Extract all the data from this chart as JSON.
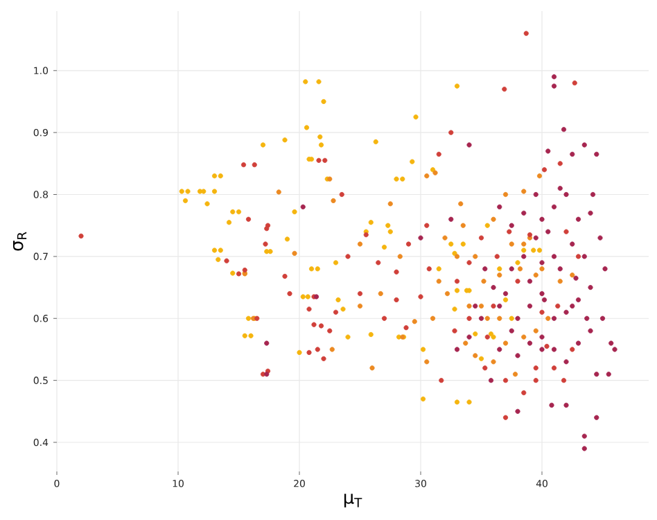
{
  "chart_data": {
    "type": "scatter",
    "xlabel": "μ$_{T}$",
    "ylabel": "σ$_{R}$",
    "xlim": [
      0,
      48.8
    ],
    "ylim": [
      0.353,
      1.096
    ],
    "xticks": [
      0,
      10,
      20,
      30,
      40
    ],
    "yticks": [
      0.4,
      0.5,
      0.6,
      0.7,
      0.8,
      0.9,
      {
        "value": 1,
        "label": "1.0"
      }
    ],
    "grid": true,
    "marker": "circle",
    "series": [
      {
        "color": "#f5b50f",
        "x": [
          10.3,
          10.8,
          10.6,
          11.8,
          12.1,
          12.4,
          13,
          13,
          13.5,
          13,
          13.5,
          13.3,
          14.2,
          14.5,
          15,
          14.5,
          15.5,
          15.5,
          16,
          17,
          18.8,
          19,
          19.6,
          20.5,
          21.6,
          22,
          20.6,
          21.7,
          21.8,
          20.8,
          21,
          22.3,
          20.3,
          20.7,
          21,
          21.5,
          17.3,
          17.6,
          15.8,
          16.3,
          26.3,
          29.6,
          29.3,
          28.5,
          28,
          25.9,
          27.3,
          27.5,
          25.5,
          27,
          30.2,
          30.2,
          33,
          31,
          32.5,
          33.5,
          32.8,
          33.8,
          34,
          33,
          32.8,
          33,
          34,
          35,
          35.8,
          36,
          34.5,
          36.5,
          37,
          38.5,
          39.3,
          39.8,
          38,
          37.5,
          35.5,
          23.6,
          23.2,
          24,
          25.9,
          28.2,
          28.6,
          31.5,
          23,
          20
        ],
        "values": [
          0.805,
          0.805,
          0.79,
          0.805,
          0.805,
          0.785,
          0.805,
          0.83,
          0.83,
          0.71,
          0.71,
          0.695,
          0.755,
          0.772,
          0.772,
          0.673,
          0.673,
          0.572,
          0.572,
          0.88,
          0.888,
          0.728,
          0.772,
          0.982,
          0.982,
          0.95,
          0.908,
          0.893,
          0.88,
          0.857,
          0.857,
          0.825,
          0.635,
          0.635,
          0.68,
          0.68,
          0.708,
          0.708,
          0.6,
          0.6,
          0.885,
          0.925,
          0.853,
          0.825,
          0.825,
          0.755,
          0.75,
          0.74,
          0.74,
          0.715,
          0.55,
          0.47,
          0.975,
          0.84,
          0.72,
          0.72,
          0.705,
          0.645,
          0.645,
          0.645,
          0.615,
          0.465,
          0.465,
          0.535,
          0.575,
          0.57,
          0.575,
          0.68,
          0.63,
          0.71,
          0.71,
          0.71,
          0.69,
          0.6,
          0.75,
          0.615,
          0.63,
          0.57,
          0.574,
          0.57,
          0.57,
          0.68,
          0.69,
          0.545
        ]
      },
      {
        "color": "#ec8a22",
        "x": [
          15.5,
          16.2,
          18.3,
          22.5,
          22.8,
          19.6,
          25,
          27.5,
          28.3,
          26.7,
          30.5,
          31.2,
          33.3,
          33.5,
          32,
          33,
          34.5,
          31.5,
          32.2,
          34,
          35,
          35.5,
          36.5,
          35.2,
          36.5,
          37.5,
          38.5,
          39,
          38.2,
          39.5,
          40.5,
          39.5,
          38.5,
          37,
          36,
          37.8,
          31,
          29.5,
          28.5,
          22.7,
          25,
          26,
          30.5,
          40,
          41.5,
          42.5,
          38.5,
          36,
          39.8,
          37,
          33.7,
          34.5
        ],
        "values": [
          0.672,
          0.6,
          0.804,
          0.825,
          0.79,
          0.705,
          0.72,
          0.785,
          0.7,
          0.64,
          0.83,
          0.835,
          0.785,
          0.75,
          0.73,
          0.7,
          0.7,
          0.66,
          0.64,
          0.62,
          0.62,
          0.6,
          0.6,
          0.66,
          0.67,
          0.72,
          0.72,
          0.73,
          0.68,
          0.67,
          0.6,
          0.58,
          0.57,
          0.56,
          0.53,
          0.51,
          0.6,
          0.595,
          0.57,
          0.55,
          0.62,
          0.52,
          0.53,
          0.68,
          0.66,
          0.67,
          0.805,
          0.76,
          0.83,
          0.8,
          0.56,
          0.54
        ]
      },
      {
        "color": "#d0403a",
        "x": [
          2,
          15.4,
          16.3,
          15.8,
          14,
          15,
          15.5,
          16.5,
          17.4,
          17.2,
          17.3,
          17,
          17.4,
          18.8,
          19.2,
          21.2,
          20.8,
          21.2,
          21.8,
          22.5,
          21.5,
          20.8,
          22,
          21.6,
          22.1,
          23.5,
          24,
          23,
          25.5,
          26.5,
          25,
          27,
          28,
          29,
          30.5,
          31.5,
          32.5,
          28.8,
          30.7,
          33,
          31.7,
          32.8,
          34,
          35.3,
          36,
          36.3,
          37.3,
          36.9,
          39,
          38.7,
          40.2,
          42.7,
          38,
          40.4,
          39.5,
          37,
          38.5,
          37,
          35.5,
          40,
          41.3,
          41,
          42.5,
          43,
          42,
          34,
          30,
          28,
          35,
          39.5,
          41.8,
          41.5
        ],
        "values": [
          0.733,
          0.848,
          0.848,
          0.76,
          0.693,
          0.672,
          0.678,
          0.6,
          0.75,
          0.72,
          0.745,
          0.51,
          0.515,
          0.668,
          0.64,
          0.635,
          0.615,
          0.59,
          0.588,
          0.58,
          0.55,
          0.545,
          0.535,
          0.855,
          0.855,
          0.8,
          0.7,
          0.61,
          0.735,
          0.69,
          0.64,
          0.6,
          0.675,
          0.72,
          0.75,
          0.865,
          0.9,
          0.585,
          0.68,
          0.66,
          0.5,
          0.58,
          0.6,
          0.52,
          0.62,
          0.7,
          0.74,
          0.97,
          0.735,
          1.06,
          0.84,
          0.98,
          0.66,
          0.555,
          0.5,
          0.5,
          0.48,
          0.44,
          0.57,
          0.61,
          0.62,
          0.52,
          0.55,
          0.7,
          0.74,
          0.69,
          0.635,
          0.63,
          0.73,
          0.52,
          0.5,
          0.85
        ]
      },
      {
        "color": "#a62650",
        "x": [
          17.3,
          17.3,
          20.3,
          21.4,
          30,
          32.5,
          34,
          36.5,
          37.5,
          38.5,
          39.5,
          40.5,
          41,
          41,
          41.8,
          42.5,
          43.5,
          44.5,
          40,
          41,
          42,
          43,
          44,
          44.8,
          45.2,
          44,
          43,
          42,
          41,
          40,
          39,
          38,
          37,
          36,
          35,
          34,
          33,
          36.5,
          38,
          39,
          40,
          41,
          42,
          43,
          44,
          45,
          46,
          45.7,
          44.5,
          45.5,
          43.5,
          43.5,
          44.5,
          42,
          40.8,
          40,
          41.5,
          42.5,
          43.5,
          40,
          39,
          37.5,
          36.5,
          35.3,
          34.5,
          38.5,
          42.5,
          41,
          39.5,
          43.7,
          37.5,
          35.8,
          38,
          40.2,
          42.8,
          44.2,
          41.5,
          40.5
        ],
        "values": [
          0.56,
          0.51,
          0.78,
          0.635,
          0.73,
          0.76,
          0.88,
          0.78,
          0.75,
          0.7,
          0.8,
          0.87,
          0.99,
          0.975,
          0.905,
          0.865,
          0.88,
          0.865,
          0.76,
          0.78,
          0.8,
          0.76,
          0.77,
          0.73,
          0.68,
          0.65,
          0.63,
          0.61,
          0.6,
          0.64,
          0.62,
          0.6,
          0.64,
          0.65,
          0.6,
          0.57,
          0.55,
          0.55,
          0.54,
          0.56,
          0.57,
          0.55,
          0.53,
          0.56,
          0.58,
          0.6,
          0.55,
          0.56,
          0.51,
          0.51,
          0.41,
          0.39,
          0.44,
          0.46,
          0.46,
          0.55,
          0.68,
          0.72,
          0.7,
          0.69,
          0.66,
          0.68,
          0.62,
          0.68,
          0.62,
          0.77,
          0.62,
          0.7,
          0.73,
          0.6,
          0.58,
          0.5,
          0.45,
          0.63,
          0.665,
          0.8,
          0.81,
          0.74
        ]
      }
    ]
  }
}
